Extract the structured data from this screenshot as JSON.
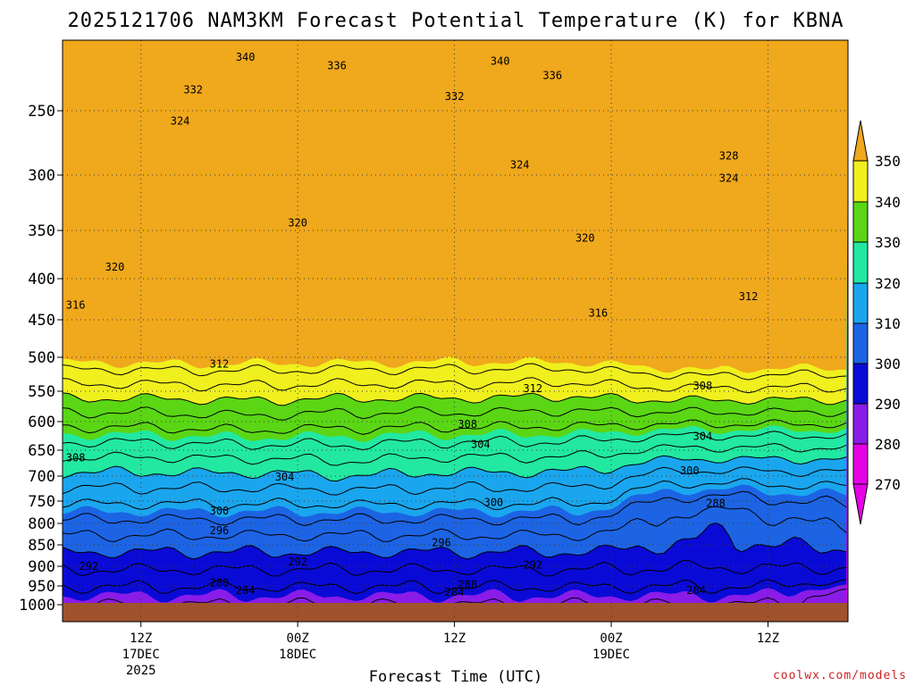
{
  "chart_data": {
    "type": "heatmap",
    "title": "2025121706 NAM3KM Forecast Potential Temperature (K) for KBNA",
    "xlabel": "Forecast Time (UTC)",
    "ylabel": "",
    "credit": "coolwx.com/models",
    "y_axis": {
      "scale": "pressure (log-like, inverted)",
      "ticks": [
        250,
        300,
        350,
        400,
        450,
        500,
        550,
        600,
        650,
        700,
        750,
        800,
        850,
        900,
        950,
        1000
      ],
      "ylim": [
        1000,
        200
      ]
    },
    "x_axis": {
      "range_hours": [
        0,
        60
      ],
      "ticks": [
        {
          "hour": 6,
          "label": "12Z",
          "sub1": "17DEC",
          "sub2": "2025"
        },
        {
          "hour": 18,
          "label": "00Z",
          "sub1": "18DEC",
          "sub2": ""
        },
        {
          "hour": 30,
          "label": "12Z",
          "sub1": "",
          "sub2": ""
        },
        {
          "hour": 42,
          "label": "00Z",
          "sub1": "19DEC",
          "sub2": ""
        },
        {
          "hour": 54,
          "label": "12Z",
          "sub1": "",
          "sub2": ""
        }
      ]
    },
    "grid": true,
    "colorbar": {
      "placement": "right",
      "ticks": [
        350,
        340,
        330,
        320,
        310,
        300,
        290,
        280,
        270
      ],
      "levels": [
        {
          "min": 270,
          "max": 280,
          "color": "#e600e6"
        },
        {
          "min": 280,
          "max": 290,
          "color": "#8a1ce8"
        },
        {
          "min": 290,
          "max": 300,
          "color": "#0a0ad6"
        },
        {
          "min": 300,
          "max": 310,
          "color": "#1c64e4"
        },
        {
          "min": 310,
          "max": 320,
          "color": "#1aa6ee"
        },
        {
          "min": 320,
          "max": 330,
          "color": "#22e8a2"
        },
        {
          "min": 330,
          "max": 340,
          "color": "#5ad614"
        },
        {
          "min": 340,
          "max": 350,
          "color": "#f0f01e"
        },
        {
          "min": 350,
          "max": 360,
          "color": "#f0a81c"
        }
      ]
    },
    "ground_color": "#a0522d",
    "contour_labels": [
      {
        "text": "340",
        "hour": 14.0,
        "p": 212
      },
      {
        "text": "336",
        "hour": 21.0,
        "p": 218
      },
      {
        "text": "340",
        "hour": 33.5,
        "p": 215
      },
      {
        "text": "336",
        "hour": 37.5,
        "p": 225
      },
      {
        "text": "332",
        "hour": 10.0,
        "p": 235
      },
      {
        "text": "332",
        "hour": 30.0,
        "p": 240
      },
      {
        "text": "324",
        "hour": 9.0,
        "p": 258
      },
      {
        "text": "328",
        "hour": 51.0,
        "p": 285
      },
      {
        "text": "324",
        "hour": 35.0,
        "p": 292
      },
      {
        "text": "324",
        "hour": 51.0,
        "p": 303
      },
      {
        "text": "320",
        "hour": 18.0,
        "p": 343
      },
      {
        "text": "320",
        "hour": 40.0,
        "p": 358
      },
      {
        "text": "320",
        "hour": 4.0,
        "p": 388
      },
      {
        "text": "316",
        "hour": 1.0,
        "p": 432
      },
      {
        "text": "316",
        "hour": 41.0,
        "p": 442
      },
      {
        "text": "312",
        "hour": 52.5,
        "p": 422
      },
      {
        "text": "312",
        "hour": 12.0,
        "p": 510
      },
      {
        "text": "312",
        "hour": 36.0,
        "p": 546
      },
      {
        "text": "308",
        "hour": 49.0,
        "p": 542
      },
      {
        "text": "308",
        "hour": 31.0,
        "p": 605
      },
      {
        "text": "304",
        "hour": 32.0,
        "p": 640
      },
      {
        "text": "304",
        "hour": 49.0,
        "p": 626
      },
      {
        "text": "308",
        "hour": 1.0,
        "p": 665
      },
      {
        "text": "300",
        "hour": 48.0,
        "p": 690
      },
      {
        "text": "304",
        "hour": 17.0,
        "p": 702
      },
      {
        "text": "300",
        "hour": 12.0,
        "p": 772
      },
      {
        "text": "300",
        "hour": 33.0,
        "p": 753
      },
      {
        "text": "288",
        "hour": 50.0,
        "p": 755
      },
      {
        "text": "296",
        "hour": 12.0,
        "p": 817
      },
      {
        "text": "296",
        "hour": 29.0,
        "p": 845
      },
      {
        "text": "292",
        "hour": 2.0,
        "p": 900
      },
      {
        "text": "292",
        "hour": 18.0,
        "p": 890
      },
      {
        "text": "292",
        "hour": 36.0,
        "p": 897
      },
      {
        "text": "288",
        "hour": 12.0,
        "p": 942
      },
      {
        "text": "288",
        "hour": 31.0,
        "p": 947
      },
      {
        "text": "284",
        "hour": 14.0,
        "p": 962
      },
      {
        "text": "284",
        "hour": 30.0,
        "p": 967
      },
      {
        "text": "284",
        "hour": 48.5,
        "p": 962
      }
    ]
  }
}
